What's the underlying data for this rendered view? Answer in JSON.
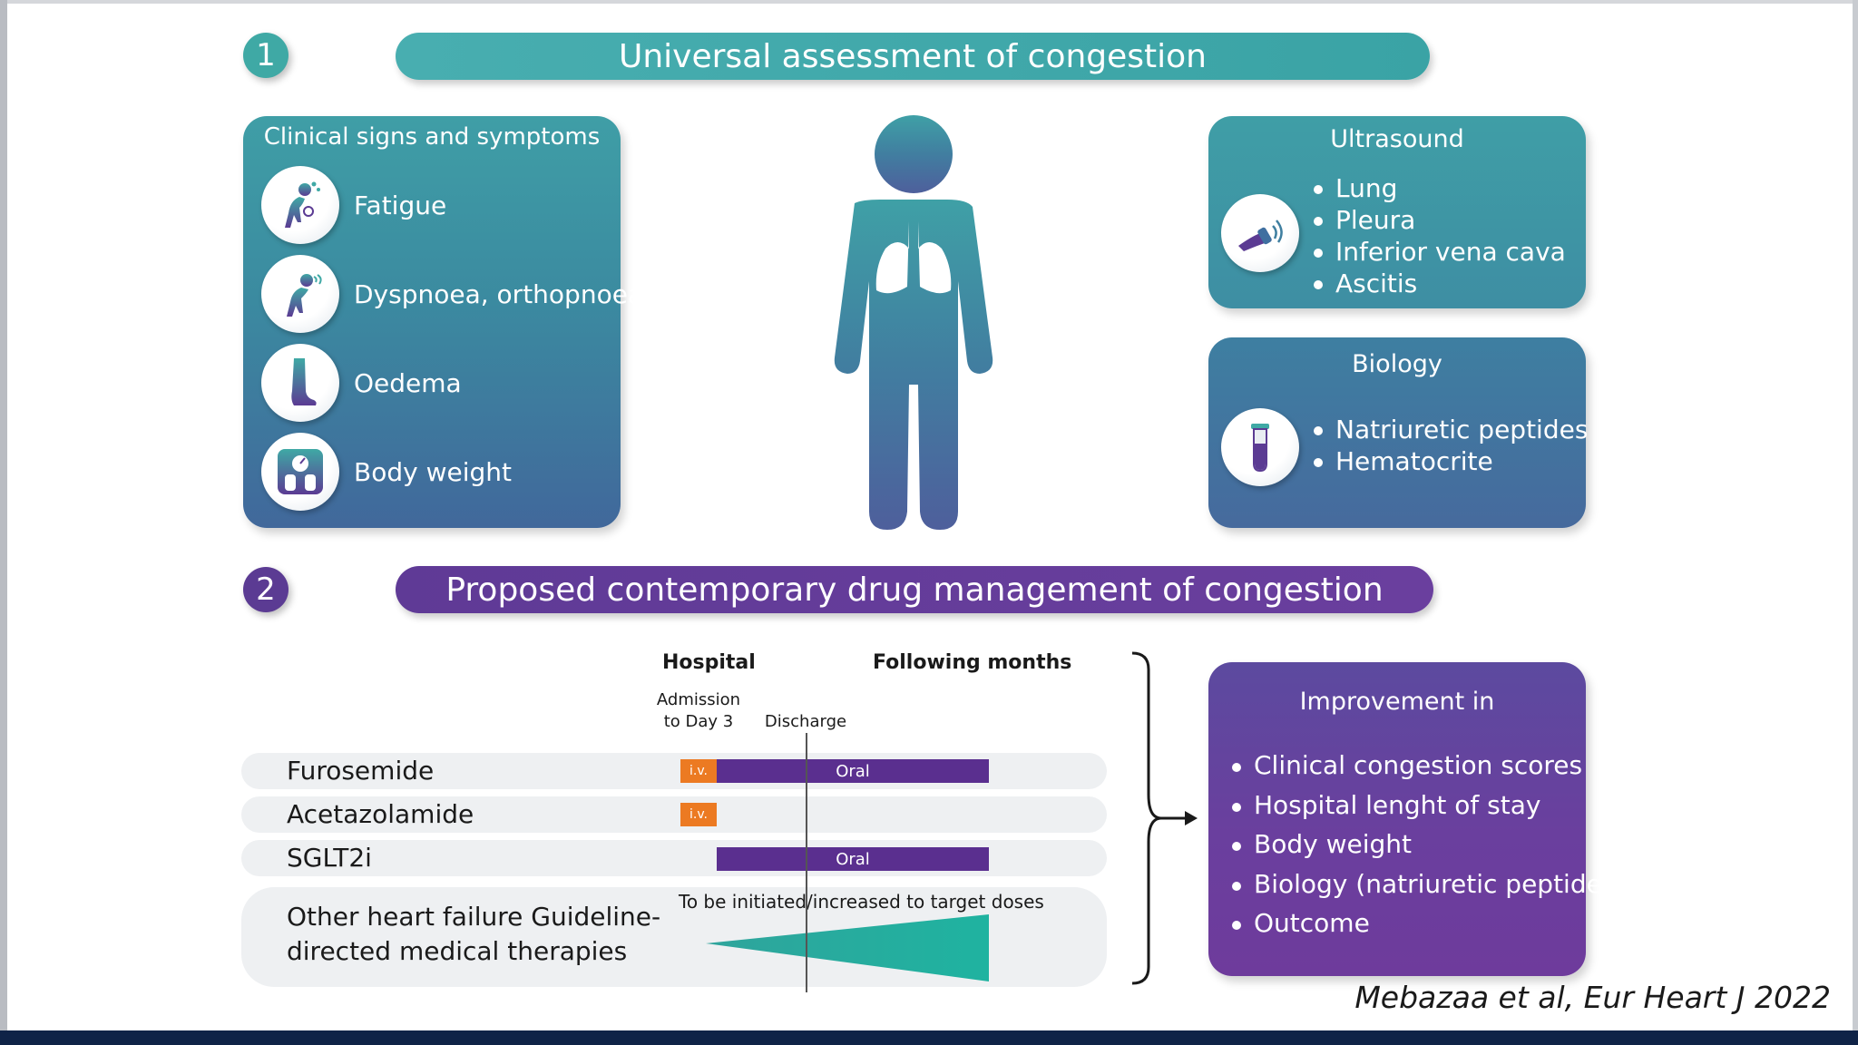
{
  "section1": {
    "number": "1",
    "title": "Universal assessment of congestion"
  },
  "clinical": {
    "title": "Clinical signs and symptoms",
    "items": [
      {
        "label": "Fatigue",
        "icon": "fatigue-icon"
      },
      {
        "label": "Dyspnoea, orthopnoea",
        "icon": "dyspnoea-icon"
      },
      {
        "label": "Oedema",
        "icon": "oedema-leg-icon"
      },
      {
        "label": "Body weight",
        "icon": "scale-icon"
      }
    ]
  },
  "ultrasound": {
    "title": "Ultrasound",
    "items": [
      "Lung",
      "Pleura",
      "Inferior vena cava",
      "Ascitis"
    ]
  },
  "biology": {
    "title": "Biology",
    "items": [
      "Natriuretic peptides",
      "Hematocrite"
    ]
  },
  "section2": {
    "number": "2",
    "title": "Proposed contemporary drug management of congestion"
  },
  "timeline": {
    "hospital": "Hospital",
    "following": "Following months",
    "admission_line1": "Admission",
    "admission_line2": "to Day 3",
    "discharge": "Discharge"
  },
  "drugs": [
    {
      "name": "Furosemide",
      "iv": "i.v.",
      "oral": "Oral"
    },
    {
      "name": "Acetazolamide",
      "iv": "i.v.",
      "oral": ""
    },
    {
      "name": "SGLT2i",
      "iv": "",
      "oral": "Oral"
    }
  ],
  "gdmt": {
    "line1": "Other heart failure Guideline-",
    "line2": "directed medical therapies",
    "note": "To be initiated/increased to target doses"
  },
  "improvement": {
    "title": "Improvement in",
    "items": [
      "Clinical congestion scores",
      "Hospital lenght of stay",
      "Body weight",
      "Biology (natriuretic peptides)",
      "Outcome"
    ]
  },
  "citation": "Mebazaa et al, Eur Heart J 2022",
  "colors": {
    "teal": "#3fa9a5",
    "purple": "#5b3b93",
    "iv_orange": "#ec7a22",
    "oral_purple": "#5a2f8f",
    "footer_navy": "#0f2347"
  }
}
